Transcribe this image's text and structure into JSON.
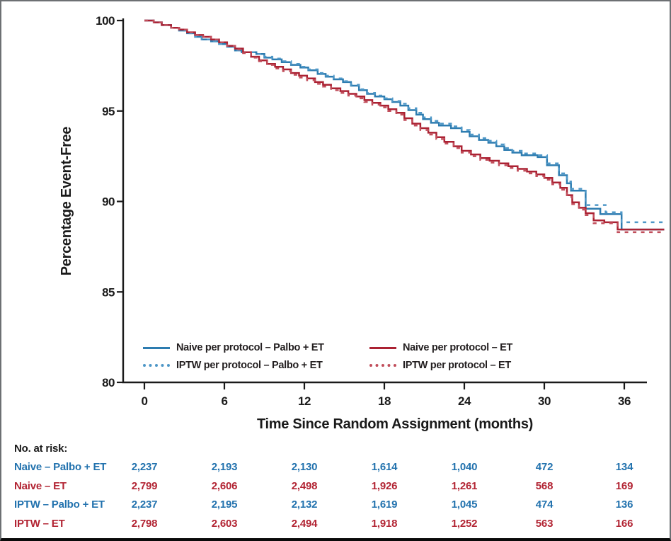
{
  "colors": {
    "naive_palbo": "#2d7cb0",
    "iptw_palbo": "#4e97c7",
    "naive_et": "#ab2233",
    "iptw_et": "#c14e5b",
    "risk_blue": "#2272ae",
    "risk_red": "#b22433",
    "axis": "#1a1a1a"
  },
  "chart_data": {
    "type": "line",
    "subtype": "kaplan-meier-step",
    "title": "",
    "xlabel": "Time Since Random Assignment (months)",
    "ylabel": "Percentage Event-Free",
    "xlim": [
      0,
      39
    ],
    "ylim": [
      80,
      100
    ],
    "xticks": [
      0,
      6,
      12,
      18,
      24,
      30,
      36
    ],
    "yticks": [
      100,
      95,
      90,
      85,
      80
    ],
    "grid": false,
    "legend_position": "inside-bottom-left",
    "series": [
      {
        "name": "Naive per protocol – Palbo + ET",
        "color": "#2d7cb0",
        "dash": "solid",
        "points": [
          [
            0,
            100
          ],
          [
            0.7,
            99.9
          ],
          [
            1.3,
            99.75
          ],
          [
            2,
            99.6
          ],
          [
            2.6,
            99.45
          ],
          [
            3.2,
            99.3
          ],
          [
            3.8,
            99.1
          ],
          [
            4.3,
            98.95
          ],
          [
            5,
            98.85
          ],
          [
            5.6,
            98.7
          ],
          [
            6.2,
            98.55
          ],
          [
            6.8,
            98.35
          ],
          [
            7.3,
            98.25
          ],
          [
            8.4,
            98.15
          ],
          [
            9,
            97.95
          ],
          [
            9.6,
            97.85
          ],
          [
            10.3,
            97.7
          ],
          [
            11,
            97.55
          ],
          [
            11.7,
            97.4
          ],
          [
            12.3,
            97.25
          ],
          [
            13,
            97.05
          ],
          [
            13.6,
            96.9
          ],
          [
            14.2,
            96.75
          ],
          [
            14.9,
            96.6
          ],
          [
            15.5,
            96.4
          ],
          [
            16.1,
            96.15
          ],
          [
            16.7,
            95.95
          ],
          [
            17.3,
            95.8
          ],
          [
            18,
            95.65
          ],
          [
            18.6,
            95.5
          ],
          [
            19.2,
            95.3
          ],
          [
            19.8,
            95.05
          ],
          [
            20.4,
            94.8
          ],
          [
            20.9,
            94.55
          ],
          [
            21.5,
            94.35
          ],
          [
            22.1,
            94.2
          ],
          [
            23,
            94.05
          ],
          [
            23.8,
            93.85
          ],
          [
            24.4,
            93.6
          ],
          [
            25.1,
            93.4
          ],
          [
            25.8,
            93.25
          ],
          [
            26.4,
            93.05
          ],
          [
            27,
            92.85
          ],
          [
            27.6,
            92.7
          ],
          [
            28.3,
            92.55
          ],
          [
            29.5,
            92.45
          ],
          [
            30.2,
            92.0
          ],
          [
            31.1,
            91.45
          ],
          [
            31.7,
            91.0
          ],
          [
            32,
            90.6
          ],
          [
            33.1,
            89.6
          ],
          [
            34.2,
            89.3
          ],
          [
            35.8,
            88.45
          ],
          [
            39,
            88.45
          ]
        ]
      },
      {
        "name": "IPTW per protocol – Palbo + ET",
        "color": "#4e97c7",
        "dash": "dashed",
        "points": [
          [
            0,
            100
          ],
          [
            0.7,
            99.9
          ],
          [
            1.3,
            99.75
          ],
          [
            2,
            99.6
          ],
          [
            2.6,
            99.45
          ],
          [
            3.2,
            99.3
          ],
          [
            3.8,
            99.1
          ],
          [
            4.3,
            98.95
          ],
          [
            5,
            98.85
          ],
          [
            5.6,
            98.7
          ],
          [
            6.2,
            98.55
          ],
          [
            6.8,
            98.35
          ],
          [
            7.3,
            98.25
          ],
          [
            8.4,
            98.15
          ],
          [
            9,
            98.0
          ],
          [
            9.6,
            97.9
          ],
          [
            10.3,
            97.75
          ],
          [
            11,
            97.6
          ],
          [
            11.7,
            97.45
          ],
          [
            12.3,
            97.3
          ],
          [
            13,
            97.1
          ],
          [
            13.6,
            96.95
          ],
          [
            14.2,
            96.8
          ],
          [
            14.9,
            96.65
          ],
          [
            15.5,
            96.45
          ],
          [
            16.1,
            96.2
          ],
          [
            16.7,
            96.0
          ],
          [
            17.3,
            95.85
          ],
          [
            18,
            95.7
          ],
          [
            18.6,
            95.55
          ],
          [
            19.2,
            95.4
          ],
          [
            19.8,
            95.15
          ],
          [
            20.4,
            94.9
          ],
          [
            20.9,
            94.65
          ],
          [
            21.5,
            94.45
          ],
          [
            22.1,
            94.3
          ],
          [
            23,
            94.15
          ],
          [
            23.8,
            93.95
          ],
          [
            24.4,
            93.7
          ],
          [
            25.1,
            93.5
          ],
          [
            25.8,
            93.35
          ],
          [
            26.4,
            93.15
          ],
          [
            27,
            92.95
          ],
          [
            27.6,
            92.8
          ],
          [
            28.3,
            92.65
          ],
          [
            29.5,
            92.55
          ],
          [
            30.2,
            92.1
          ],
          [
            31.1,
            91.55
          ],
          [
            31.7,
            91.1
          ],
          [
            32,
            90.7
          ],
          [
            33.1,
            89.8
          ],
          [
            34.6,
            89.4
          ],
          [
            35.8,
            88.85
          ],
          [
            39,
            88.85
          ]
        ]
      },
      {
        "name": "Naive per protocol – ET",
        "color": "#ab2233",
        "dash": "solid",
        "points": [
          [
            0,
            100
          ],
          [
            0.7,
            99.9
          ],
          [
            1.3,
            99.75
          ],
          [
            2,
            99.6
          ],
          [
            2.6,
            99.5
          ],
          [
            3.2,
            99.35
          ],
          [
            3.8,
            99.2
          ],
          [
            4.4,
            99.1
          ],
          [
            5,
            98.95
          ],
          [
            5.6,
            98.8
          ],
          [
            6.2,
            98.6
          ],
          [
            6.8,
            98.45
          ],
          [
            7.4,
            98.25
          ],
          [
            8,
            98.0
          ],
          [
            8.6,
            97.8
          ],
          [
            9.2,
            97.6
          ],
          [
            9.8,
            97.45
          ],
          [
            10.4,
            97.3
          ],
          [
            11,
            97.1
          ],
          [
            11.6,
            96.95
          ],
          [
            12.2,
            96.8
          ],
          [
            12.8,
            96.6
          ],
          [
            13.4,
            96.45
          ],
          [
            14,
            96.25
          ],
          [
            14.7,
            96.1
          ],
          [
            15.3,
            95.95
          ],
          [
            15.9,
            95.8
          ],
          [
            16.5,
            95.6
          ],
          [
            17.1,
            95.45
          ],
          [
            17.7,
            95.3
          ],
          [
            18.3,
            95.1
          ],
          [
            18.9,
            94.9
          ],
          [
            19.5,
            94.6
          ],
          [
            20.1,
            94.3
          ],
          [
            20.7,
            94.05
          ],
          [
            21.3,
            93.8
          ],
          [
            21.9,
            93.55
          ],
          [
            22.5,
            93.3
          ],
          [
            23.2,
            93.05
          ],
          [
            23.8,
            92.8
          ],
          [
            24.5,
            92.6
          ],
          [
            25.2,
            92.4
          ],
          [
            25.9,
            92.25
          ],
          [
            26.6,
            92.1
          ],
          [
            27.3,
            91.95
          ],
          [
            28,
            91.8
          ],
          [
            28.7,
            91.65
          ],
          [
            29.4,
            91.5
          ],
          [
            30,
            91.3
          ],
          [
            30.6,
            91.05
          ],
          [
            31.2,
            90.75
          ],
          [
            31.7,
            90.35
          ],
          [
            32.1,
            89.95
          ],
          [
            32.6,
            89.65
          ],
          [
            33.1,
            89.35
          ],
          [
            33.7,
            88.95
          ],
          [
            34.5,
            88.85
          ],
          [
            35.5,
            88.45
          ],
          [
            39,
            88.45
          ]
        ]
      },
      {
        "name": "IPTW per protocol – ET",
        "color": "#c14e5b",
        "dash": "dashed",
        "points": [
          [
            0,
            100
          ],
          [
            0.7,
            99.9
          ],
          [
            1.3,
            99.75
          ],
          [
            2,
            99.6
          ],
          [
            2.6,
            99.5
          ],
          [
            3.2,
            99.35
          ],
          [
            3.8,
            99.2
          ],
          [
            4.4,
            99.1
          ],
          [
            5,
            98.95
          ],
          [
            5.6,
            98.8
          ],
          [
            6.2,
            98.6
          ],
          [
            6.8,
            98.4
          ],
          [
            7.4,
            98.2
          ],
          [
            8,
            97.95
          ],
          [
            8.6,
            97.75
          ],
          [
            9.2,
            97.55
          ],
          [
            9.8,
            97.35
          ],
          [
            10.4,
            97.2
          ],
          [
            11,
            97.0
          ],
          [
            11.6,
            96.85
          ],
          [
            12.2,
            96.7
          ],
          [
            12.8,
            96.5
          ],
          [
            13.4,
            96.35
          ],
          [
            14,
            96.15
          ],
          [
            14.7,
            96.0
          ],
          [
            15.3,
            95.85
          ],
          [
            15.9,
            95.7
          ],
          [
            16.5,
            95.5
          ],
          [
            17.1,
            95.35
          ],
          [
            17.7,
            95.2
          ],
          [
            18.3,
            95.0
          ],
          [
            18.9,
            94.8
          ],
          [
            19.5,
            94.5
          ],
          [
            20.1,
            94.2
          ],
          [
            20.7,
            93.95
          ],
          [
            21.3,
            93.7
          ],
          [
            21.9,
            93.45
          ],
          [
            22.5,
            93.2
          ],
          [
            23.2,
            92.95
          ],
          [
            23.8,
            92.7
          ],
          [
            24.5,
            92.5
          ],
          [
            25.2,
            92.3
          ],
          [
            25.9,
            92.15
          ],
          [
            26.6,
            92.0
          ],
          [
            27.3,
            91.85
          ],
          [
            28,
            91.7
          ],
          [
            28.7,
            91.55
          ],
          [
            29.4,
            91.4
          ],
          [
            30,
            91.2
          ],
          [
            30.6,
            90.95
          ],
          [
            31.2,
            90.65
          ],
          [
            31.7,
            90.25
          ],
          [
            32.1,
            89.85
          ],
          [
            32.6,
            89.55
          ],
          [
            33.1,
            89.25
          ],
          [
            33.7,
            88.8
          ],
          [
            35.5,
            88.3
          ],
          [
            39,
            88.3
          ]
        ]
      }
    ]
  },
  "legend": {
    "items": [
      {
        "label": "Naive per protocol – Palbo + ET",
        "color": "#2d7cb0",
        "dash": "solid"
      },
      {
        "label": "IPTW per protocol – Palbo + ET",
        "color": "#4e97c7",
        "dash": "dotted"
      },
      {
        "label": "Naive per protocol – ET",
        "color": "#ab2233",
        "dash": "solid"
      },
      {
        "label": "IPTW per protocol – ET",
        "color": "#c14e5b",
        "dash": "dotted"
      }
    ]
  },
  "risk_table": {
    "header": "No. at risk:",
    "rows": [
      {
        "label": "Naive – Palbo + ET",
        "color": "#2272ae",
        "values": [
          "2,237",
          "2,193",
          "2,130",
          "1,614",
          "1,040",
          "472",
          "134"
        ]
      },
      {
        "label": "Naive – ET",
        "color": "#b22433",
        "values": [
          "2,799",
          "2,606",
          "2,498",
          "1,926",
          "1,261",
          "568",
          "169"
        ]
      },
      {
        "label": "IPTW – Palbo + ET",
        "color": "#2272ae",
        "values": [
          "2,237",
          "2,195",
          "2,132",
          "1,619",
          "1,045",
          "474",
          "136"
        ]
      },
      {
        "label": "IPTW – ET",
        "color": "#b22433",
        "values": [
          "2,798",
          "2,603",
          "2,494",
          "1,918",
          "1,252",
          "563",
          "166"
        ]
      }
    ]
  }
}
